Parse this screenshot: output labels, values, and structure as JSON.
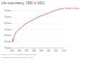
{
  "chart_data": {
    "type": "line",
    "title": "Life expectancy, 1950 to 2021",
    "x": [
      1950,
      1951,
      1953,
      1955,
      1958,
      1960,
      1963,
      1966,
      1970,
      1973,
      1976,
      1980,
      1983,
      1986,
      1990,
      1993,
      1996,
      2000,
      2003,
      2006,
      2010,
      2013,
      2016,
      2019,
      2021
    ],
    "series": [
      {
        "name": "Republic of Korea",
        "color": "#c15065",
        "values": [
          36,
          30,
          38,
          45,
          48,
          51,
          53,
          57,
          60,
          62,
          64,
          66,
          68,
          70,
          72,
          73,
          75,
          76,
          78,
          79,
          81,
          82,
          83,
          83.5,
          83.7
        ]
      }
    ],
    "xlim": [
      1950,
      2021
    ],
    "xticks": [
      1950,
      1960,
      1970,
      1980,
      1990,
      2000,
      2010,
      2021
    ],
    "ylim": [
      20,
      85
    ],
    "yticks": [
      {
        "value": 20,
        "label": "20 years"
      },
      {
        "value": 30,
        "label": "30 years"
      },
      {
        "value": 40,
        "label": "40 years"
      },
      {
        "value": 50,
        "label": "50 years"
      },
      {
        "value": 60,
        "label": "60 years"
      },
      {
        "value": 70,
        "label": "70 years"
      },
      {
        "value": 80,
        "label": "80 years"
      }
    ],
    "grid": true,
    "source": "Source: UN, World Population Prospects (2022)",
    "footer": "OurWorldInData.org/life-expectancy | CC BY"
  }
}
